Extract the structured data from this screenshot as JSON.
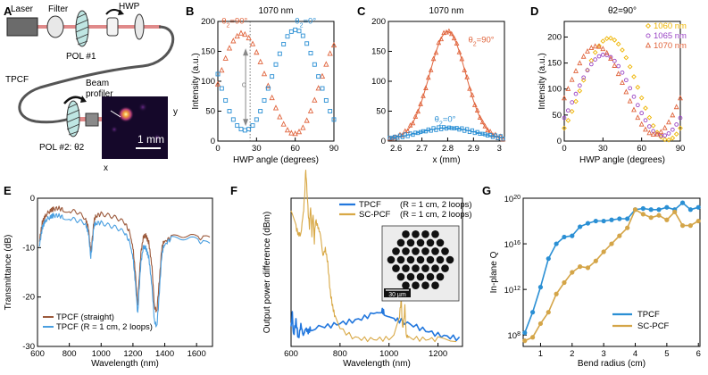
{
  "panel_labels": [
    "A",
    "B",
    "C",
    "D",
    "E",
    "F",
    "G"
  ],
  "setup": {
    "laser": "Laser",
    "filter": "Filter",
    "hwp": "HWP",
    "pol1": "POL #1",
    "fiber": "TPCF",
    "profiler_1": "Beam",
    "profiler_2": "profiler",
    "pol2": "POL #2: θ2",
    "scale": "1 mm",
    "x_axis": "x",
    "y_axis": "y"
  },
  "colors": {
    "orange": "#e0643c",
    "blue": "#2a8fd4",
    "blue_line": "#2277dd",
    "gold": "#d8a845",
    "brown": "#9c5a3c",
    "sky": "#4a9fe0",
    "gold_mk": "#eeb400",
    "purple": "#9a44c4"
  },
  "chart_data": [
    {
      "id": "B",
      "type": "scatter",
      "title": "1070 nm",
      "xlabel": "HWP angle (degrees)",
      "ylabel": "Intensity (a.u.)",
      "xlim": [
        0,
        90
      ],
      "ylim": [
        0,
        200
      ],
      "xticks": [
        0,
        30,
        60,
        90
      ],
      "yticks": [
        0,
        50,
        100,
        150,
        200
      ],
      "annotations": [
        "θ2=90°",
        "θ2=0°",
        "c"
      ],
      "vline_x": 25,
      "series": [
        {
          "name": "θ2=90°",
          "marker": "triangle",
          "color": "#e0643c",
          "x": [
            0,
            3,
            6,
            9,
            12,
            15,
            18,
            21,
            24,
            27,
            30,
            33,
            36,
            39,
            42,
            45,
            48,
            51,
            54,
            57,
            60,
            63,
            66,
            69,
            72,
            75,
            78,
            81,
            84,
            87,
            90
          ],
          "y": [
            95,
            118,
            138,
            155,
            167,
            175,
            180,
            178,
            172,
            162,
            148,
            132,
            112,
            92,
            72,
            55,
            40,
            28,
            18,
            13,
            12,
            15,
            22,
            34,
            50,
            68,
            88,
            108,
            128,
            146,
            160
          ]
        },
        {
          "name": "θ2=0°",
          "marker": "square",
          "color": "#2a8fd4",
          "x": [
            0,
            3,
            6,
            9,
            12,
            15,
            18,
            21,
            24,
            27,
            30,
            33,
            36,
            39,
            42,
            45,
            48,
            51,
            54,
            57,
            60,
            63,
            66,
            69,
            72,
            75,
            78,
            81,
            84,
            87,
            90
          ],
          "y": [
            112,
            88,
            68,
            50,
            36,
            26,
            20,
            18,
            20,
            26,
            36,
            50,
            68,
            88,
            108,
            128,
            146,
            162,
            175,
            183,
            186,
            184,
            176,
            163,
            147,
            128,
            108,
            88,
            68,
            50,
            36
          ]
        }
      ]
    },
    {
      "id": "C",
      "type": "scatter",
      "title": "1070 nm",
      "xlabel": "x (mm)",
      "ylabel": "",
      "xlim": [
        2.57,
        3.02
      ],
      "ylim": [
        0,
        200
      ],
      "xticks": [
        2.6,
        2.7,
        2.8,
        2.9,
        3.0
      ],
      "xtick_labels": [
        "2.6",
        "2.7",
        "2.8",
        "2.9",
        "3"
      ],
      "yticks": [
        0,
        50,
        100,
        150,
        200
      ],
      "annotations": [
        "θ2=90°",
        "θ2=0°"
      ],
      "series": [
        {
          "name": "θ2=90°",
          "marker": "triangle",
          "color": "#e0643c",
          "shape": "gauss",
          "amplitude": 180,
          "center": 2.8,
          "sigma": 0.07,
          "offset": 3
        },
        {
          "name": "θ2=0°",
          "marker": "square",
          "color": "#2a8fd4",
          "shape": "gauss",
          "amplitude": 19,
          "center": 2.8,
          "sigma": 0.11,
          "offset": 3
        }
      ]
    },
    {
      "id": "D",
      "type": "scatter",
      "title": "θ2=90°",
      "xlabel": "HWP angle (degrees)",
      "ylabel": "Intensity (a.u.)",
      "xlim": [
        0,
        90
      ],
      "ylim": [
        0,
        230
      ],
      "xticks": [
        0,
        30,
        60,
        90
      ],
      "yticks": [
        0,
        50,
        100,
        150,
        200
      ],
      "legend_position": "top-right",
      "series": [
        {
          "name": "1060 nm",
          "marker": "diamond",
          "color": "#eeb400",
          "amp": 98,
          "mid": 100,
          "phase": 35
        },
        {
          "name": "1065 nm",
          "marker": "circle",
          "color": "#9a44c4",
          "amp": 78,
          "mid": 88,
          "phase": 31
        },
        {
          "name": "1070 nm",
          "marker": "triangle",
          "color": "#e0643c",
          "amp": 85,
          "mid": 97,
          "phase": 25
        }
      ]
    },
    {
      "id": "E",
      "type": "line",
      "xlabel": "Wavelength (nm)",
      "ylabel": "Transmittance (dB)",
      "xlim": [
        600,
        1700
      ],
      "ylim": [
        -30,
        0
      ],
      "xticks": [
        600,
        800,
        1000,
        1200,
        1400,
        1600
      ],
      "yticks": [
        -30,
        -20,
        -10,
        0
      ],
      "legend_position": "bottom-left",
      "series": [
        {
          "name": "TPCF (straight)",
          "color": "#9c5a3c",
          "x": [
            610,
            630,
            650,
            680,
            700,
            730,
            760,
            800,
            850,
            900,
            920,
            935,
            945,
            955,
            970,
            1000,
            1050,
            1100,
            1150,
            1180,
            1200,
            1215,
            1230,
            1240,
            1250,
            1265,
            1280,
            1300,
            1320,
            1335,
            1350,
            1360,
            1370,
            1380,
            1390,
            1410,
            1440,
            1480,
            1520,
            1560,
            1600,
            1650,
            1690
          ],
          "y": [
            -9,
            -5,
            -3.5,
            -2.5,
            -2.2,
            -2,
            -2.3,
            -2.5,
            -2.8,
            -4,
            -6,
            -11,
            -8,
            -4.5,
            -3.5,
            -3.2,
            -3.5,
            -4,
            -5,
            -7,
            -10,
            -15,
            -22,
            -16,
            -11,
            -8,
            -7.5,
            -9,
            -14,
            -22,
            -23,
            -19,
            -15,
            -10.5,
            -9,
            -8.5,
            -8,
            -7.5,
            -7.5,
            -7.5,
            -8,
            -8,
            -8.2
          ]
        },
        {
          "name": "TPCF (R = 1 cm, 2 loops)",
          "color": "#4a9fe0",
          "x": [
            610,
            630,
            650,
            680,
            700,
            730,
            760,
            800,
            850,
            900,
            920,
            935,
            945,
            955,
            970,
            1000,
            1050,
            1100,
            1150,
            1180,
            1200,
            1215,
            1230,
            1240,
            1250,
            1265,
            1280,
            1300,
            1320,
            1335,
            1350,
            1360,
            1370,
            1380,
            1390,
            1410,
            1440,
            1480,
            1520,
            1560,
            1600,
            1650,
            1690
          ],
          "y": [
            -10,
            -6,
            -4.5,
            -3.8,
            -3.5,
            -3.5,
            -3.8,
            -4,
            -4.5,
            -5,
            -7,
            -12,
            -9,
            -5.5,
            -5,
            -5,
            -5.5,
            -6,
            -7,
            -9,
            -12,
            -17,
            -23.5,
            -18,
            -13,
            -10,
            -10,
            -12,
            -18,
            -25,
            -26,
            -22,
            -17,
            -12,
            -10,
            -9,
            -8.2,
            -8,
            -8,
            -8,
            -8.5,
            -9,
            -9.5
          ]
        }
      ]
    },
    {
      "id": "F",
      "type": "line",
      "xlabel": "Wavelength (nm)",
      "ylabel": "Output power difference (dBm)",
      "xlim": [
        600,
        1300
      ],
      "ylim": [
        -0.5,
        20
      ],
      "xticks": [
        600,
        800,
        1000,
        1200
      ],
      "legend_position": "top-right",
      "inset_scale": "30 µm",
      "series": [
        {
          "name": "TPCF",
          "legend_note": "(R = 1 cm, 2 loops)",
          "color": "#2277dd",
          "x": [
            600,
            605,
            610,
            620,
            630,
            640,
            650,
            660,
            670,
            680,
            700,
            750,
            800,
            850,
            900,
            950,
            970,
            980,
            1000,
            1020,
            1050,
            1100,
            1150,
            1200,
            1250,
            1300
          ],
          "y": [
            2,
            4,
            1,
            3,
            0.5,
            2.5,
            1,
            2,
            1.5,
            2,
            2.2,
            2.3,
            2.7,
            3,
            3.5,
            4.3,
            4.5,
            4.2,
            3.8,
            3.3,
            3,
            2.4,
            1.7,
            1.1,
            0.8,
            0.5
          ]
        },
        {
          "name": "SC-PCF",
          "legend_note": "(R = 1 cm, 2 loops)",
          "color": "#d8a845",
          "x": [
            600,
            620,
            630,
            640,
            650,
            655,
            660,
            665,
            670,
            675,
            680,
            685,
            690,
            695,
            700,
            710,
            720,
            730,
            740,
            750,
            760,
            770,
            780,
            800,
            850,
            900,
            950,
            1000,
            1020,
            1040,
            1050,
            1055,
            1060,
            1065,
            1070,
            1080,
            1100,
            1150,
            1200,
            1300
          ],
          "y": [
            18,
            16,
            15,
            15,
            18,
            20,
            24,
            21,
            18,
            16,
            19,
            15,
            18,
            14,
            17,
            16,
            15,
            12,
            13,
            11,
            7,
            5,
            3.5,
            2,
            0.8,
            0.5,
            0.5,
            0.6,
            1,
            3,
            6,
            2,
            3,
            5,
            1,
            0.8,
            0.6,
            0.5,
            0.5,
            0.5
          ]
        }
      ]
    },
    {
      "id": "G",
      "type": "line",
      "xlabel": "Bend radius (cm)",
      "ylabel": "In-plane Q",
      "xlim": [
        0.45,
        6.05
      ],
      "ylog": true,
      "ylim_exp": [
        7,
        20
      ],
      "xticks": [
        1,
        2,
        3,
        4,
        5,
        6
      ],
      "yticks_exp": [
        8,
        12,
        16,
        20
      ],
      "legend_position": "bottom-right",
      "series": [
        {
          "name": "TPCF",
          "color": "#2a8fd4",
          "x": [
            0.5,
            0.75,
            1.0,
            1.25,
            1.5,
            1.75,
            2.0,
            2.25,
            2.5,
            2.75,
            3.0,
            3.25,
            3.5,
            3.75,
            4.0,
            4.25,
            4.5,
            4.75,
            5.0,
            5.25,
            5.5,
            5.75,
            6.0
          ],
          "exp": [
            8.2,
            10.0,
            12.2,
            14.7,
            16.0,
            16.6,
            16.7,
            17.5,
            17.8,
            18.0,
            18.0,
            18.1,
            18.2,
            18.2,
            19.0,
            19.1,
            19.0,
            19.0,
            19.2,
            19.0,
            19.6,
            19.0,
            19.2
          ]
        },
        {
          "name": "SC-PCF",
          "color": "#d4a548",
          "x": [
            0.5,
            0.75,
            1.0,
            1.25,
            1.5,
            1.75,
            2.0,
            2.25,
            2.5,
            2.75,
            3.0,
            3.25,
            3.5,
            3.75,
            4.0,
            4.25,
            4.5,
            4.75,
            5.0,
            5.25,
            5.5,
            5.75,
            6.0
          ],
          "exp": [
            7.5,
            7.8,
            9.0,
            10.0,
            11.6,
            12.6,
            13.5,
            14.0,
            13.9,
            14.5,
            15.3,
            16.0,
            16.7,
            17.4,
            19.0,
            18.6,
            18.3,
            18.5,
            18.1,
            18.8,
            17.6,
            17.6,
            18.0
          ]
        }
      ]
    }
  ]
}
